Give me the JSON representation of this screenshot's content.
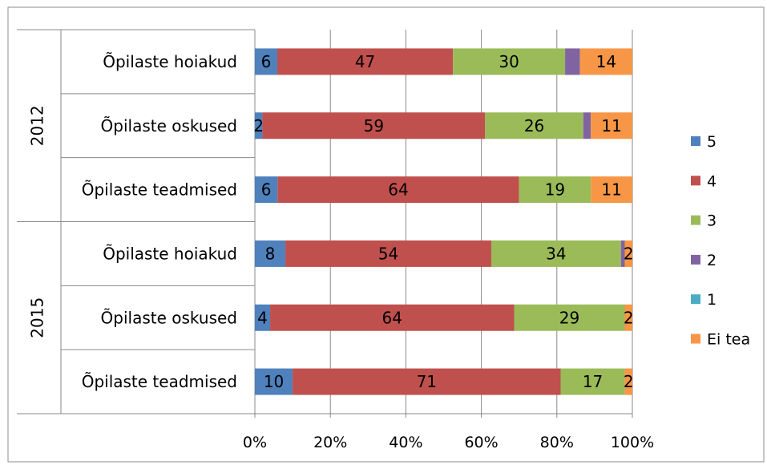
{
  "chart_data": {
    "type": "bar",
    "orientation": "horizontal",
    "stacked": "percent",
    "groups": [
      {
        "label": "2012",
        "categories": [
          "Õpilaste hoiakud",
          "Õpilaste oskused",
          "Õpilaste teadmised"
        ]
      },
      {
        "label": "2015",
        "categories": [
          "Õpilaste hoiakud",
          "Õpilaste oskused",
          "Õpilaste teadmised"
        ]
      }
    ],
    "series": [
      {
        "name": "5",
        "color": "#4F81BD",
        "values": [
          6,
          2,
          6,
          8,
          4,
          10
        ],
        "labels": [
          "6",
          "2",
          "6",
          "8",
          "4",
          "10"
        ]
      },
      {
        "name": "4",
        "color": "#C0504D",
        "values": [
          47,
          59,
          64,
          54,
          64,
          71
        ],
        "labels": [
          "47",
          "59",
          "64",
          "54",
          "64",
          "71"
        ]
      },
      {
        "name": "3",
        "color": "#9BBB59",
        "values": [
          30,
          26,
          19,
          34,
          29,
          17
        ],
        "labels": [
          "30",
          "26",
          "19",
          "34",
          "29",
          "17"
        ]
      },
      {
        "name": "2",
        "color": "#8064A2",
        "values": [
          4,
          2,
          0,
          1,
          0,
          0
        ],
        "labels": [
          "",
          "",
          "",
          "",
          "",
          ""
        ]
      },
      {
        "name": "1",
        "color": "#4BACC6",
        "values": [
          0,
          0,
          0,
          0,
          0,
          0
        ],
        "labels": [
          "",
          "",
          "",
          "",
          "",
          ""
        ]
      },
      {
        "name": "Ei tea",
        "color": "#F79646",
        "values": [
          14,
          11,
          11,
          2,
          2,
          2
        ],
        "labels": [
          "14",
          "11",
          "11",
          "2",
          "2",
          "2"
        ]
      }
    ],
    "x_ticks": [
      "0%",
      "20%",
      "40%",
      "60%",
      "80%",
      "100%"
    ],
    "xlim": [
      0,
      100
    ],
    "grid": "vertical",
    "legend_position": "right"
  }
}
